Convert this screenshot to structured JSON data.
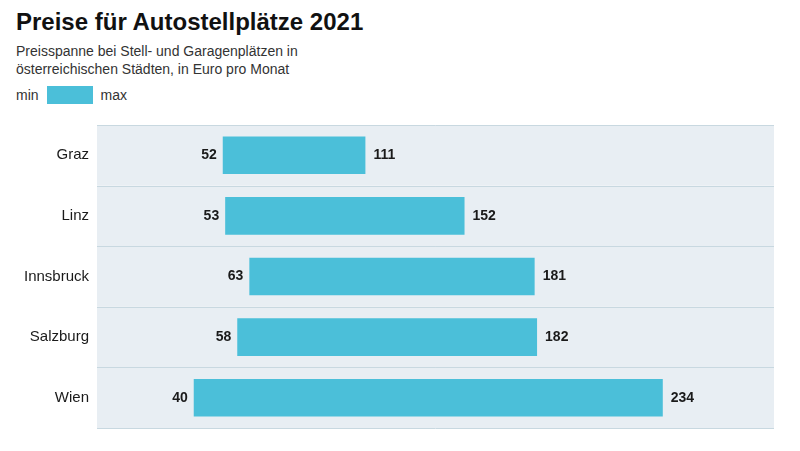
{
  "chart_data": {
    "type": "bar",
    "orientation": "horizontal",
    "title": "Preise für Autostellplätze 2021",
    "subtitle": [
      "Preisspanne bei Stell- und Garagenplätzen in",
      "österreichischen Städten, in Euro pro Monat"
    ],
    "categories": [
      "Wien",
      "Salzburg",
      "Innsbruck",
      "Linz",
      "Graz"
    ],
    "series": [
      {
        "name": "min",
        "values": [
          40,
          58,
          63,
          53,
          52
        ]
      },
      {
        "name": "max",
        "values": [
          234,
          182,
          181,
          152,
          111
        ]
      }
    ],
    "color": "#4BBFD9",
    "xlim": [
      0,
      280
    ],
    "grid": false,
    "data_labels": true,
    "tick_labels": "y"
  }
}
